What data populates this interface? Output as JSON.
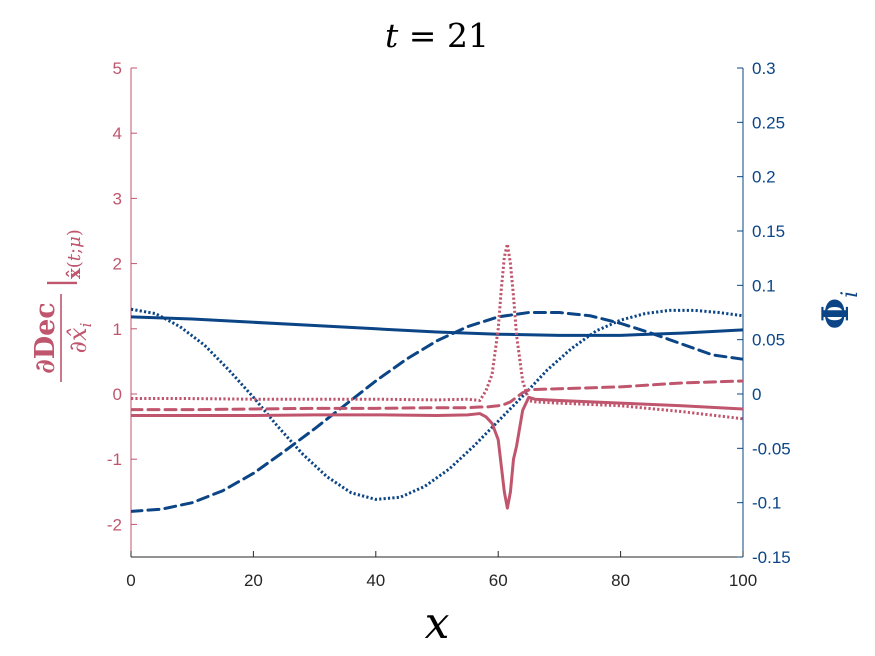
{
  "colors": {
    "left": "#c0566e",
    "right": "#0b4586",
    "axis": "#262626"
  },
  "chart_data": {
    "type": "line",
    "title": "t = 21",
    "xlabel": "x",
    "ylabel_left": "∂Dec/∂x̂ᵢ |x̂(t;μ)",
    "ylabel_right": "Φᵢ",
    "xlim": [
      0,
      100
    ],
    "ylim_left": [
      -2.5,
      5
    ],
    "ylim_right": [
      -0.15,
      0.3
    ],
    "xticks": [
      "0",
      "20",
      "40",
      "60",
      "80",
      "100"
    ],
    "yticks_left": [
      "-2",
      "-1",
      "0",
      "1",
      "2",
      "3",
      "4",
      "5"
    ],
    "yticks_right": [
      "-0.15",
      "-0.1",
      "-0.05",
      "0",
      "0.05",
      "0.1",
      "0.15",
      "0.2",
      "0.25",
      "0.3"
    ],
    "left_series": [
      {
        "style": "dotted",
        "x": [
          0,
          10,
          20,
          30,
          40,
          50,
          55,
          57,
          58,
          59,
          60,
          60.5,
          61,
          61.5,
          62,
          62.5,
          63,
          64,
          65,
          66,
          70,
          80,
          90,
          100
        ],
        "y": [
          -0.07,
          -0.07,
          -0.08,
          -0.08,
          -0.08,
          -0.09,
          -0.08,
          -0.1,
          0.05,
          0.3,
          1.0,
          1.6,
          2.1,
          2.3,
          2.0,
          1.5,
          0.9,
          0.2,
          -0.1,
          -0.12,
          -0.14,
          -0.18,
          -0.27,
          -0.38
        ]
      },
      {
        "style": "dashed",
        "x": [
          0,
          10,
          20,
          30,
          40,
          50,
          55,
          57,
          58,
          59,
          60,
          61,
          62,
          63,
          64,
          65,
          66,
          70,
          80,
          90,
          100
        ],
        "y": [
          -0.24,
          -0.24,
          -0.23,
          -0.22,
          -0.22,
          -0.21,
          -0.21,
          -0.2,
          -0.2,
          -0.19,
          -0.18,
          -0.16,
          -0.12,
          -0.05,
          0.02,
          0.06,
          0.07,
          0.08,
          0.11,
          0.17,
          0.2
        ]
      },
      {
        "style": "solid",
        "x": [
          0,
          10,
          20,
          30,
          40,
          50,
          55,
          57,
          58,
          59,
          60,
          60.5,
          61,
          61.5,
          62,
          62.5,
          63,
          64,
          65,
          66,
          70,
          80,
          90,
          100
        ],
        "y": [
          -0.33,
          -0.33,
          -0.33,
          -0.32,
          -0.32,
          -0.33,
          -0.32,
          -0.3,
          -0.35,
          -0.45,
          -0.7,
          -1.1,
          -1.5,
          -1.75,
          -1.5,
          -1.0,
          -0.8,
          -0.25,
          -0.05,
          -0.08,
          -0.1,
          -0.14,
          -0.18,
          -0.23
        ]
      }
    ],
    "right_series": [
      {
        "style": "solid",
        "x": [
          0,
          10,
          20,
          30,
          40,
          50,
          60,
          70,
          80,
          90,
          100
        ],
        "y": [
          0.071,
          0.069,
          0.066,
          0.063,
          0.06,
          0.057,
          0.055,
          0.054,
          0.054,
          0.056,
          0.059
        ]
      },
      {
        "style": "dashed",
        "x": [
          0,
          5,
          10,
          15,
          20,
          25,
          30,
          35,
          40,
          45,
          50,
          55,
          60,
          65,
          70,
          75,
          80,
          85,
          90,
          95,
          100
        ],
        "y": [
          -0.108,
          -0.106,
          -0.1,
          -0.089,
          -0.073,
          -0.053,
          -0.032,
          -0.01,
          0.012,
          0.032,
          0.049,
          0.062,
          0.071,
          0.075,
          0.075,
          0.072,
          0.065,
          0.056,
          0.046,
          0.036,
          0.032
        ]
      },
      {
        "style": "dotted",
        "x": [
          0,
          4,
          8,
          12,
          16,
          20,
          24,
          28,
          32,
          36,
          40,
          44,
          48,
          52,
          56,
          60,
          64,
          68,
          72,
          76,
          80,
          84,
          88,
          92,
          96,
          100
        ],
        "y": [
          0.078,
          0.074,
          0.062,
          0.045,
          0.022,
          -0.003,
          -0.03,
          -0.055,
          -0.076,
          -0.091,
          -0.097,
          -0.095,
          -0.085,
          -0.069,
          -0.048,
          -0.025,
          -0.002,
          0.022,
          0.042,
          0.058,
          0.068,
          0.074,
          0.077,
          0.077,
          0.075,
          0.072
        ]
      }
    ]
  }
}
